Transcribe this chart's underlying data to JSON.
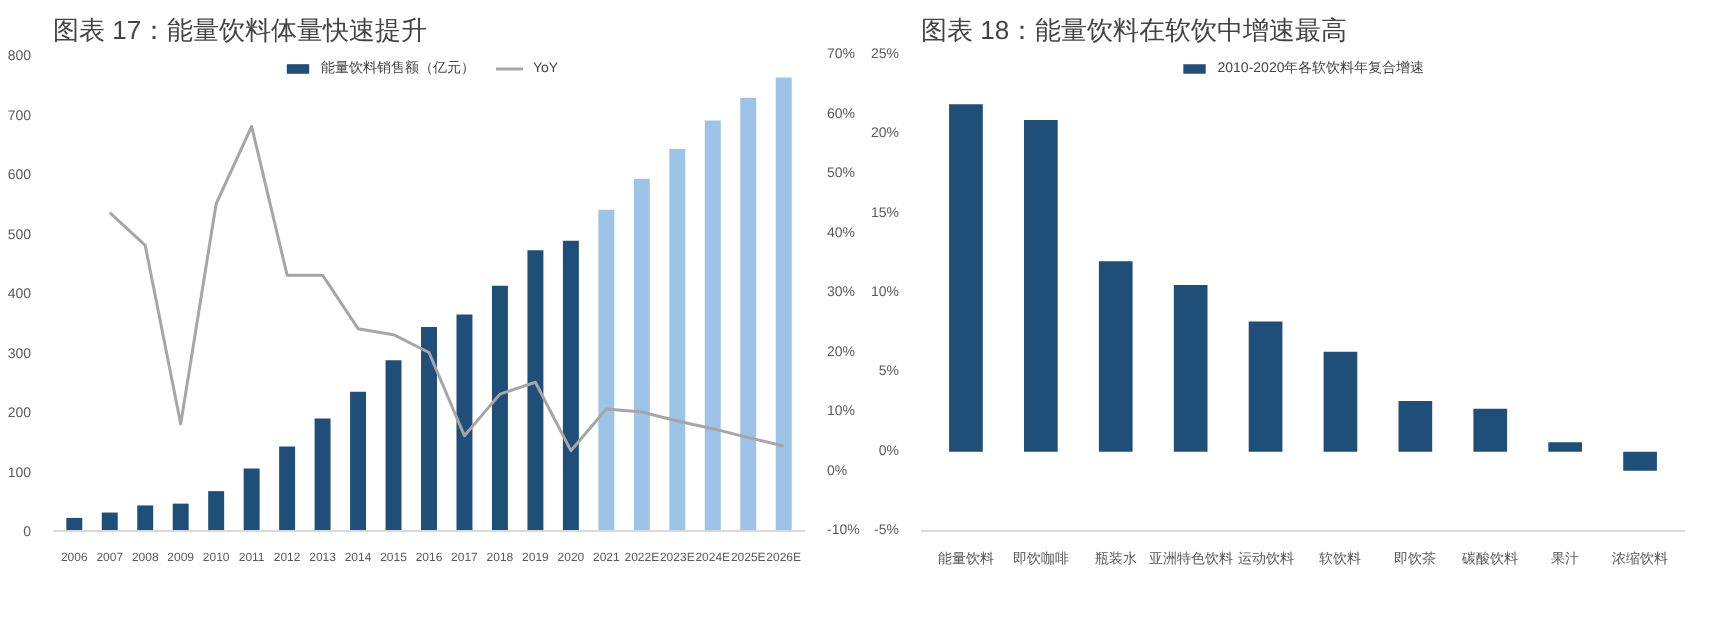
{
  "chart_data": [
    {
      "type": "bar",
      "title": "图表 17：能量饮料体量快速提升",
      "categories": [
        "2006",
        "2007",
        "2008",
        "2009",
        "2010",
        "2011",
        "2012",
        "2013",
        "2014",
        "2015",
        "2016",
        "2017",
        "2018",
        "2019",
        "2020",
        "2021",
        "2022E",
        "2023E",
        "2024E",
        "2025E",
        "2026E"
      ],
      "series": [
        {
          "name": "能量饮料销售额（亿元）",
          "type": "bar",
          "colors": [
            "#1f4e79",
            "#1f4e79",
            "#1f4e79",
            "#1f4e79",
            "#1f4e79",
            "#1f4e79",
            "#1f4e79",
            "#1f4e79",
            "#1f4e79",
            "#1f4e79",
            "#1f4e79",
            "#1f4e79",
            "#1f4e79",
            "#1f4e79",
            "#1f4e79",
            "#9dc3e6",
            "#9dc3e6",
            "#9dc3e6",
            "#9dc3e6",
            "#9dc3e6",
            "#9dc3e6"
          ],
          "values": [
            22,
            31,
            43,
            46,
            67,
            105,
            142,
            189,
            234,
            287,
            343,
            364,
            412,
            472,
            488,
            540,
            592,
            642,
            690,
            728,
            762
          ]
        },
        {
          "name": "YoY",
          "type": "line",
          "axis": "y2",
          "color": "#a6a6a6",
          "values": [
            null,
            43.5,
            38,
            8,
            45,
            58,
            33,
            33,
            24,
            23,
            20,
            6,
            13,
            15,
            3.5,
            10.5,
            10,
            8.5,
            7.2,
            5.7,
            4.3
          ]
        }
      ],
      "ylim": [
        0,
        800
      ],
      "yticks": [
        0,
        100,
        200,
        300,
        400,
        500,
        600,
        700,
        800
      ],
      "y2lim": [
        -10,
        70
      ],
      "y2ticks": [
        {
          "value": -10,
          "label": "-10%"
        },
        {
          "value": 0,
          "label": "0%"
        },
        {
          "value": 10,
          "label": "10%"
        },
        {
          "value": 20,
          "label": "20%"
        },
        {
          "value": 30,
          "label": "30%"
        },
        {
          "value": 40,
          "label": "40%"
        },
        {
          "value": 50,
          "label": "50%"
        },
        {
          "value": 60,
          "label": "60%"
        },
        {
          "value": 70,
          "label": "70%"
        }
      ],
      "legend": "top",
      "grid": false
    },
    {
      "type": "bar",
      "title": "图表 18：能量饮料在软饮中增速最高",
      "categories": [
        "能量饮料",
        "即饮咖啡",
        "瓶装水",
        "亚洲特色饮料",
        "运动饮料",
        "软饮料",
        "即饮茶",
        "碳酸饮料",
        "果汁",
        "浓缩饮料"
      ],
      "series": [
        {
          "name": "2010-2020年各软饮料年复合增速",
          "color": "#1f4e79",
          "values": [
            21.9,
            20.9,
            12.0,
            10.5,
            8.2,
            6.3,
            3.2,
            2.7,
            0.6,
            -1.2
          ]
        }
      ],
      "ylim": [
        -5,
        25
      ],
      "yticks": [
        {
          "value": -5,
          "label": "-5%"
        },
        {
          "value": 0,
          "label": "0%"
        },
        {
          "value": 5,
          "label": "5%"
        },
        {
          "value": 10,
          "label": "10%"
        },
        {
          "value": 15,
          "label": "15%"
        },
        {
          "value": 20,
          "label": "20%"
        },
        {
          "value": 25,
          "label": "25%"
        }
      ],
      "legend": "top",
      "grid": false
    }
  ]
}
